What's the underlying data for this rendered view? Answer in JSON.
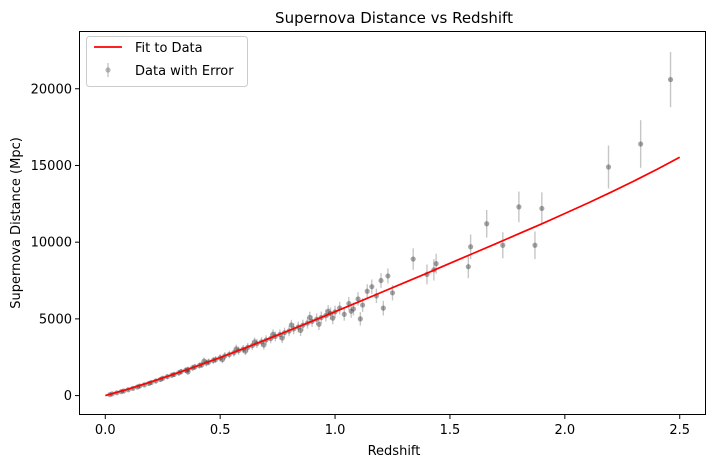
{
  "chart_data": {
    "type": "scatter",
    "title": "Supernova Distance vs Redshift",
    "xlabel": "Redshift",
    "ylabel": "Supernova Distance (Mpc)",
    "xlim": [
      -0.11,
      2.61
    ],
    "ylim": [
      -1200,
      23700
    ],
    "xticks": [
      0.0,
      0.5,
      1.0,
      1.5,
      2.0,
      2.5
    ],
    "xtick_labels": [
      "0.0",
      "0.5",
      "1.0",
      "1.5",
      "2.0",
      "2.5"
    ],
    "yticks": [
      0,
      5000,
      10000,
      15000,
      20000
    ],
    "ytick_labels": [
      "0",
      "5000",
      "10000",
      "15000",
      "20000"
    ],
    "legend_position": "top-left",
    "grid": false,
    "series": [
      {
        "name": "Fit to Data",
        "kind": "line",
        "color": "#ff0000",
        "points": [
          [
            0.0,
            0
          ],
          [
            0.1,
            430
          ],
          [
            0.2,
            900
          ],
          [
            0.3,
            1400
          ],
          [
            0.4,
            1930
          ],
          [
            0.5,
            2480
          ],
          [
            0.6,
            3050
          ],
          [
            0.7,
            3640
          ],
          [
            0.8,
            4240
          ],
          [
            0.9,
            4850
          ],
          [
            1.0,
            5470
          ],
          [
            1.1,
            6090
          ],
          [
            1.2,
            6720
          ],
          [
            1.3,
            7350
          ],
          [
            1.4,
            7980
          ],
          [
            1.5,
            8620
          ],
          [
            1.6,
            9260
          ],
          [
            1.7,
            9900
          ],
          [
            1.8,
            10550
          ],
          [
            1.9,
            11200
          ],
          [
            2.0,
            11870
          ],
          [
            2.1,
            12550
          ],
          [
            2.2,
            13250
          ],
          [
            2.3,
            13980
          ],
          [
            2.4,
            14740
          ],
          [
            2.5,
            15540
          ]
        ]
      },
      {
        "name": "Data with Error",
        "kind": "errorbar",
        "color": "#808080",
        "points": [
          {
            "x": 0.02,
            "y": 60,
            "err": 60
          },
          {
            "x": 0.03,
            "y": 110,
            "err": 70
          },
          {
            "x": 0.05,
            "y": 180,
            "err": 80
          },
          {
            "x": 0.07,
            "y": 260,
            "err": 90
          },
          {
            "x": 0.08,
            "y": 300,
            "err": 90
          },
          {
            "x": 0.1,
            "y": 380,
            "err": 100
          },
          {
            "x": 0.12,
            "y": 470,
            "err": 100
          },
          {
            "x": 0.14,
            "y": 560,
            "err": 110
          },
          {
            "x": 0.15,
            "y": 620,
            "err": 120
          },
          {
            "x": 0.17,
            "y": 700,
            "err": 120
          },
          {
            "x": 0.19,
            "y": 790,
            "err": 130
          },
          {
            "x": 0.2,
            "y": 850,
            "err": 140
          },
          {
            "x": 0.22,
            "y": 950,
            "err": 140
          },
          {
            "x": 0.24,
            "y": 1050,
            "err": 150
          },
          {
            "x": 0.25,
            "y": 1130,
            "err": 150
          },
          {
            "x": 0.27,
            "y": 1230,
            "err": 160
          },
          {
            "x": 0.29,
            "y": 1330,
            "err": 170
          },
          {
            "x": 0.3,
            "y": 1380,
            "err": 170
          },
          {
            "x": 0.32,
            "y": 1480,
            "err": 180
          },
          {
            "x": 0.33,
            "y": 1560,
            "err": 180
          },
          {
            "x": 0.35,
            "y": 1650,
            "err": 190
          },
          {
            "x": 0.36,
            "y": 1700,
            "err": 190
          },
          {
            "x": 0.38,
            "y": 1810,
            "err": 200
          },
          {
            "x": 0.39,
            "y": 1870,
            "err": 200
          },
          {
            "x": 0.41,
            "y": 1960,
            "err": 210
          },
          {
            "x": 0.42,
            "y": 2010,
            "err": 210
          },
          {
            "x": 0.44,
            "y": 2130,
            "err": 220
          },
          {
            "x": 0.45,
            "y": 2190,
            "err": 220
          },
          {
            "x": 0.47,
            "y": 2290,
            "err": 230
          },
          {
            "x": 0.48,
            "y": 2350,
            "err": 230
          },
          {
            "x": 0.5,
            "y": 2460,
            "err": 240
          },
          {
            "x": 0.52,
            "y": 2580,
            "err": 250
          },
          {
            "x": 0.54,
            "y": 2680,
            "err": 250
          },
          {
            "x": 0.56,
            "y": 2800,
            "err": 260
          },
          {
            "x": 0.58,
            "y": 2930,
            "err": 270
          },
          {
            "x": 0.6,
            "y": 3030,
            "err": 270
          },
          {
            "x": 0.62,
            "y": 3150,
            "err": 280
          },
          {
            "x": 0.64,
            "y": 3260,
            "err": 290
          },
          {
            "x": 0.66,
            "y": 3390,
            "err": 290
          },
          {
            "x": 0.68,
            "y": 3500,
            "err": 300
          },
          {
            "x": 0.7,
            "y": 3620,
            "err": 310
          },
          {
            "x": 0.72,
            "y": 3720,
            "err": 310
          },
          {
            "x": 0.74,
            "y": 3860,
            "err": 320
          },
          {
            "x": 0.76,
            "y": 3980,
            "err": 330
          },
          {
            "x": 0.78,
            "y": 4100,
            "err": 330
          },
          {
            "x": 0.8,
            "y": 4210,
            "err": 340
          },
          {
            "x": 0.82,
            "y": 4350,
            "err": 350
          },
          {
            "x": 0.84,
            "y": 4470,
            "err": 350
          },
          {
            "x": 0.86,
            "y": 4590,
            "err": 360
          },
          {
            "x": 0.88,
            "y": 4730,
            "err": 370
          },
          {
            "x": 0.9,
            "y": 4840,
            "err": 370
          },
          {
            "x": 0.92,
            "y": 4980,
            "err": 380
          },
          {
            "x": 0.94,
            "y": 5090,
            "err": 390
          },
          {
            "x": 0.96,
            "y": 5220,
            "err": 390
          },
          {
            "x": 0.98,
            "y": 5350,
            "err": 400
          },
          {
            "x": 1.0,
            "y": 5460,
            "err": 400
          },
          {
            "x": 0.36,
            "y": 1550,
            "err": 190
          },
          {
            "x": 0.43,
            "y": 2250,
            "err": 220
          },
          {
            "x": 0.51,
            "y": 2350,
            "err": 240
          },
          {
            "x": 0.57,
            "y": 3050,
            "err": 270
          },
          {
            "x": 0.61,
            "y": 2900,
            "err": 270
          },
          {
            "x": 0.65,
            "y": 3500,
            "err": 290
          },
          {
            "x": 0.69,
            "y": 3300,
            "err": 300
          },
          {
            "x": 0.73,
            "y": 4000,
            "err": 320
          },
          {
            "x": 0.77,
            "y": 3750,
            "err": 330
          },
          {
            "x": 0.81,
            "y": 4600,
            "err": 340
          },
          {
            "x": 0.85,
            "y": 4250,
            "err": 360
          },
          {
            "x": 0.89,
            "y": 5100,
            "err": 370
          },
          {
            "x": 0.93,
            "y": 4650,
            "err": 380
          },
          {
            "x": 0.97,
            "y": 5500,
            "err": 400
          },
          {
            "x": 0.99,
            "y": 5050,
            "err": 400
          },
          {
            "x": 1.02,
            "y": 5700,
            "err": 410
          },
          {
            "x": 1.04,
            "y": 5300,
            "err": 420
          },
          {
            "x": 1.06,
            "y": 6000,
            "err": 430
          },
          {
            "x": 1.08,
            "y": 5650,
            "err": 430
          },
          {
            "x": 1.1,
            "y": 6300,
            "err": 440
          },
          {
            "x": 1.12,
            "y": 5900,
            "err": 450
          },
          {
            "x": 1.14,
            "y": 6800,
            "err": 460
          },
          {
            "x": 1.16,
            "y": 7100,
            "err": 470
          },
          {
            "x": 1.18,
            "y": 6500,
            "err": 470
          },
          {
            "x": 1.2,
            "y": 7500,
            "err": 480
          },
          {
            "x": 1.21,
            "y": 5700,
            "err": 480
          },
          {
            "x": 1.23,
            "y": 7800,
            "err": 490
          },
          {
            "x": 1.25,
            "y": 6700,
            "err": 500
          },
          {
            "x": 1.11,
            "y": 5000,
            "err": 440
          },
          {
            "x": 1.07,
            "y": 5500,
            "err": 430
          },
          {
            "x": 1.34,
            "y": 8900,
            "err": 700
          },
          {
            "x": 1.4,
            "y": 7900,
            "err": 650
          },
          {
            "x": 1.43,
            "y": 8200,
            "err": 700
          },
          {
            "x": 1.44,
            "y": 8600,
            "err": 650
          },
          {
            "x": 1.58,
            "y": 8400,
            "err": 750
          },
          {
            "x": 1.59,
            "y": 9700,
            "err": 800
          },
          {
            "x": 1.66,
            "y": 11200,
            "err": 900
          },
          {
            "x": 1.73,
            "y": 9800,
            "err": 850
          },
          {
            "x": 1.8,
            "y": 12300,
            "err": 1000
          },
          {
            "x": 1.87,
            "y": 9800,
            "err": 900
          },
          {
            "x": 1.9,
            "y": 12200,
            "err": 1050
          },
          {
            "x": 2.19,
            "y": 14900,
            "err": 1400
          },
          {
            "x": 2.33,
            "y": 16400,
            "err": 1550
          },
          {
            "x": 2.46,
            "y": 20600,
            "err": 1800
          }
        ]
      }
    ]
  }
}
